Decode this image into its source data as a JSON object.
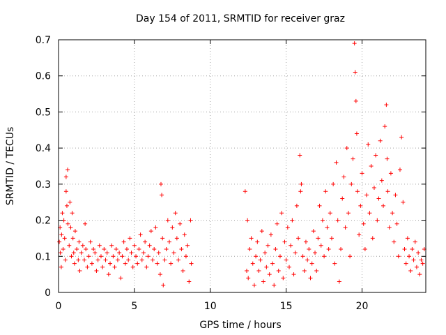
{
  "chart_data": {
    "type": "scatter",
    "title": "Day 154 of 2011, SRMTID for receiver graz",
    "xlabel": "GPS time / hours",
    "ylabel": "SRMTID / TECUs",
    "xlim": [
      0,
      24.2
    ],
    "ylim": [
      0,
      0.7
    ],
    "xticks": [
      0,
      5,
      10,
      15,
      20
    ],
    "yticks": [
      0,
      0.1,
      0.2,
      0.3,
      0.4,
      0.5,
      0.6,
      0.7
    ],
    "grid": true,
    "marker": "+",
    "series": [
      {
        "name": "SRMTID",
        "color": "#ff0000",
        "points": [
          [
            0.05,
            0.14
          ],
          [
            0.1,
            0.18
          ],
          [
            0.12,
            0.11
          ],
          [
            0.18,
            0.07
          ],
          [
            0.2,
            0.16
          ],
          [
            0.25,
            0.22
          ],
          [
            0.3,
            0.12
          ],
          [
            0.35,
            0.2
          ],
          [
            0.4,
            0.15
          ],
          [
            0.45,
            0.09
          ],
          [
            0.5,
            0.32
          ],
          [
            0.5,
            0.28
          ],
          [
            0.55,
            0.24
          ],
          [
            0.6,
            0.34
          ],
          [
            0.62,
            0.19
          ],
          [
            0.7,
            0.13
          ],
          [
            0.75,
            0.25
          ],
          [
            0.8,
            0.18
          ],
          [
            0.85,
            0.1
          ],
          [
            0.9,
            0.22
          ],
          [
            0.95,
            0.15
          ],
          [
            1.0,
            0.11
          ],
          [
            1.05,
            0.08
          ],
          [
            1.1,
            0.17
          ],
          [
            1.2,
            0.12
          ],
          [
            1.3,
            0.09
          ],
          [
            1.35,
            0.14
          ],
          [
            1.4,
            0.06
          ],
          [
            1.5,
            0.11
          ],
          [
            1.6,
            0.13
          ],
          [
            1.7,
            0.09
          ],
          [
            1.75,
            0.19
          ],
          [
            1.8,
            0.12
          ],
          [
            1.9,
            0.07
          ],
          [
            2.0,
            0.1
          ],
          [
            2.1,
            0.14
          ],
          [
            2.2,
            0.08
          ],
          [
            2.3,
            0.12
          ],
          [
            2.4,
            0.11
          ],
          [
            2.5,
            0.06
          ],
          [
            2.6,
            0.09
          ],
          [
            2.7,
            0.13
          ],
          [
            2.8,
            0.1
          ],
          [
            2.9,
            0.07
          ],
          [
            3.0,
            0.12
          ],
          [
            3.1,
            0.09
          ],
          [
            3.2,
            0.11
          ],
          [
            3.3,
            0.05
          ],
          [
            3.4,
            0.08
          ],
          [
            3.5,
            0.13
          ],
          [
            3.6,
            0.1
          ],
          [
            3.7,
            0.07
          ],
          [
            3.8,
            0.12
          ],
          [
            3.9,
            0.09
          ],
          [
            4.0,
            0.11
          ],
          [
            4.1,
            0.04
          ],
          [
            4.2,
            0.1
          ],
          [
            4.3,
            0.14
          ],
          [
            4.4,
            0.08
          ],
          [
            4.5,
            0.12
          ],
          [
            4.6,
            0.09
          ],
          [
            4.7,
            0.15
          ],
          [
            4.8,
            0.11
          ],
          [
            4.9,
            0.07
          ],
          [
            5.0,
            0.13
          ],
          [
            5.1,
            0.1
          ],
          [
            5.2,
            0.08
          ],
          [
            5.3,
            0.12
          ],
          [
            5.4,
            0.16
          ],
          [
            5.5,
            0.09
          ],
          [
            5.6,
            0.11
          ],
          [
            5.7,
            0.14
          ],
          [
            5.8,
            0.07
          ],
          [
            5.9,
            0.1
          ],
          [
            6.0,
            0.13
          ],
          [
            6.1,
            0.17
          ],
          [
            6.2,
            0.09
          ],
          [
            6.3,
            0.12
          ],
          [
            6.4,
            0.18
          ],
          [
            6.5,
            0.08
          ],
          [
            6.6,
            0.11
          ],
          [
            6.7,
            0.05
          ],
          [
            6.75,
            0.3
          ],
          [
            6.8,
            0.27
          ],
          [
            6.85,
            0.15
          ],
          [
            6.9,
            0.02
          ],
          [
            7.0,
            0.09
          ],
          [
            7.1,
            0.12
          ],
          [
            7.2,
            0.2
          ],
          [
            7.3,
            0.14
          ],
          [
            7.4,
            0.08
          ],
          [
            7.5,
            0.18
          ],
          [
            7.6,
            0.11
          ],
          [
            7.7,
            0.22
          ],
          [
            7.8,
            0.15
          ],
          [
            7.9,
            0.09
          ],
          [
            8.0,
            0.19
          ],
          [
            8.1,
            0.12
          ],
          [
            8.2,
            0.06
          ],
          [
            8.3,
            0.16
          ],
          [
            8.4,
            0.1
          ],
          [
            8.5,
            0.13
          ],
          [
            8.6,
            0.03
          ],
          [
            8.7,
            0.2
          ],
          [
            8.75,
            0.08
          ],
          [
            12.3,
            0.28
          ],
          [
            12.4,
            0.06
          ],
          [
            12.45,
            0.2
          ],
          [
            12.5,
            0.04
          ],
          [
            12.6,
            0.12
          ],
          [
            12.7,
            0.15
          ],
          [
            12.8,
            0.08
          ],
          [
            12.9,
            0.02
          ],
          [
            13.0,
            0.1
          ],
          [
            13.1,
            0.14
          ],
          [
            13.2,
            0.06
          ],
          [
            13.3,
            0.09
          ],
          [
            13.4,
            0.17
          ],
          [
            13.5,
            0.03
          ],
          [
            13.6,
            0.11
          ],
          [
            13.7,
            0.07
          ],
          [
            13.8,
            0.13
          ],
          [
            13.9,
            0.05
          ],
          [
            14.0,
            0.16
          ],
          [
            14.1,
            0.08
          ],
          [
            14.2,
            0.02
          ],
          [
            14.3,
            0.12
          ],
          [
            14.4,
            0.19
          ],
          [
            14.5,
            0.06
          ],
          [
            14.6,
            0.1
          ],
          [
            14.7,
            0.22
          ],
          [
            14.8,
            0.04
          ],
          [
            14.9,
            0.14
          ],
          [
            15.0,
            0.09
          ],
          [
            15.1,
            0.18
          ],
          [
            15.2,
            0.07
          ],
          [
            15.3,
            0.13
          ],
          [
            15.4,
            0.2
          ],
          [
            15.5,
            0.05
          ],
          [
            15.6,
            0.11
          ],
          [
            15.7,
            0.24
          ],
          [
            15.8,
            0.15
          ],
          [
            15.9,
            0.38
          ],
          [
            15.95,
            0.28
          ],
          [
            16.0,
            0.3
          ],
          [
            16.1,
            0.1
          ],
          [
            16.2,
            0.06
          ],
          [
            16.3,
            0.14
          ],
          [
            16.4,
            0.09
          ],
          [
            16.5,
            0.12
          ],
          [
            16.6,
            0.04
          ],
          [
            16.7,
            0.08
          ],
          [
            16.8,
            0.17
          ],
          [
            16.9,
            0.11
          ],
          [
            17.0,
            0.06
          ],
          [
            17.1,
            0.15
          ],
          [
            17.2,
            0.24
          ],
          [
            17.3,
            0.13
          ],
          [
            17.4,
            0.2
          ],
          [
            17.5,
            0.1
          ],
          [
            17.6,
            0.28
          ],
          [
            17.7,
            0.18
          ],
          [
            17.8,
            0.12
          ],
          [
            17.9,
            0.22
          ],
          [
            18.0,
            0.15
          ],
          [
            18.1,
            0.3
          ],
          [
            18.2,
            0.08
          ],
          [
            18.3,
            0.36
          ],
          [
            18.4,
            0.2
          ],
          [
            18.5,
            0.03
          ],
          [
            18.6,
            0.12
          ],
          [
            18.7,
            0.26
          ],
          [
            18.8,
            0.32
          ],
          [
            18.9,
            0.18
          ],
          [
            19.0,
            0.4
          ],
          [
            19.1,
            0.22
          ],
          [
            19.2,
            0.1
          ],
          [
            19.3,
            0.3
          ],
          [
            19.4,
            0.37
          ],
          [
            19.5,
            0.69
          ],
          [
            19.55,
            0.61
          ],
          [
            19.6,
            0.53
          ],
          [
            19.65,
            0.44
          ],
          [
            19.7,
            0.28
          ],
          [
            19.8,
            0.16
          ],
          [
            19.9,
            0.24
          ],
          [
            20.0,
            0.33
          ],
          [
            20.1,
            0.19
          ],
          [
            20.2,
            0.12
          ],
          [
            20.3,
            0.27
          ],
          [
            20.4,
            0.41
          ],
          [
            20.5,
            0.22
          ],
          [
            20.6,
            0.35
          ],
          [
            20.7,
            0.15
          ],
          [
            20.8,
            0.29
          ],
          [
            20.9,
            0.38
          ],
          [
            21.0,
            0.2
          ],
          [
            21.1,
            0.26
          ],
          [
            21.2,
            0.42
          ],
          [
            21.3,
            0.31
          ],
          [
            21.4,
            0.24
          ],
          [
            21.5,
            0.46
          ],
          [
            21.6,
            0.52
          ],
          [
            21.65,
            0.37
          ],
          [
            21.7,
            0.28
          ],
          [
            21.8,
            0.18
          ],
          [
            21.9,
            0.33
          ],
          [
            22.0,
            0.22
          ],
          [
            22.1,
            0.14
          ],
          [
            22.2,
            0.27
          ],
          [
            22.3,
            0.19
          ],
          [
            22.4,
            0.1
          ],
          [
            22.5,
            0.34
          ],
          [
            22.6,
            0.43
          ],
          [
            22.7,
            0.25
          ],
          [
            22.8,
            0.12
          ],
          [
            22.9,
            0.08
          ],
          [
            23.0,
            0.15
          ],
          [
            23.1,
            0.1
          ],
          [
            23.2,
            0.06
          ],
          [
            23.3,
            0.12
          ],
          [
            23.4,
            0.09
          ],
          [
            23.5,
            0.14
          ],
          [
            23.6,
            0.07
          ],
          [
            23.7,
            0.11
          ],
          [
            23.8,
            0.05
          ],
          [
            23.9,
            0.09
          ],
          [
            24.0,
            0.08
          ],
          [
            24.1,
            0.12
          ]
        ]
      }
    ]
  }
}
